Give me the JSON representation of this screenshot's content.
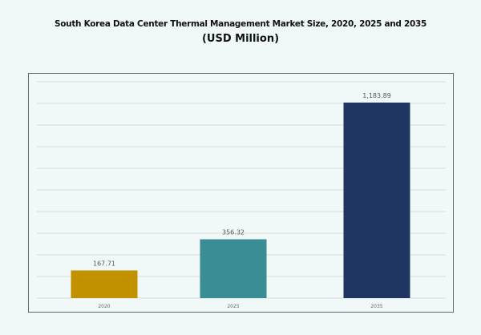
{
  "chart_data": {
    "type": "bar",
    "title": "South Korea Data Center Thermal Management Market Size, 2020, 2025 and 2035",
    "subtitle": "(USD Million)",
    "categories": [
      "2020",
      "2025",
      "2035"
    ],
    "values": [
      167.71,
      356.32,
      1183.89
    ],
    "data_labels": [
      "167.71",
      "356.32",
      "1,183.89"
    ],
    "colors": [
      "#C29100",
      "#3B8D95",
      "#1F3562"
    ],
    "xlabel": "",
    "ylabel": "",
    "ylim": [
      0,
      1310
    ],
    "grid": true,
    "y_axis_labels_shown": false
  }
}
